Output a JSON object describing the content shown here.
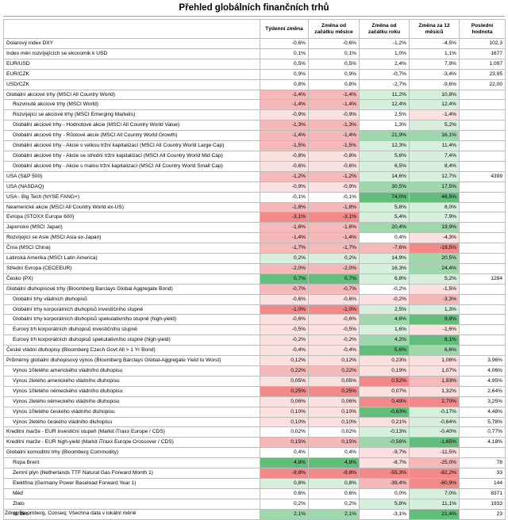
{
  "title": "Přehled globálních finančních trhů",
  "source": "Zdroj: Bloomberg, Conseq; Všechna data v lokální měně",
  "colors": {
    "red_strong": "#f28a8a",
    "red_mid": "#f6b9b9",
    "red_light": "#fbe0e0",
    "green_strong": "#63be7b",
    "green_mid": "#9fd8ad",
    "green_light": "#d7efdd",
    "white": "#ffffff"
  },
  "columns": [
    "",
    "Týdenní změna",
    "Změna od začátku měsíce",
    "Změna od začátku roku",
    "Změna za 12 měsíců",
    "Poslední hodnota"
  ],
  "rows": [
    {
      "label": "Dolarový index DXY",
      "values": [
        "-0,6%",
        "-0,6%",
        "-1,2%",
        "-4,5%",
        "102,3"
      ],
      "colors": [
        "w",
        "w",
        "w",
        "w",
        "w"
      ],
      "sep": false,
      "sub": false
    },
    {
      "label": "Index měn rozvíjejících se ekonomik k USD",
      "values": [
        "0,1%",
        "0,1%",
        "1,0%",
        "1,1%",
        "1677"
      ],
      "colors": [
        "w",
        "w",
        "w",
        "w",
        "w"
      ],
      "sep": false,
      "sub": false
    },
    {
      "label": "EUR/USD",
      "values": [
        "0,5%",
        "0,5%",
        "2,4%",
        "7,9%",
        "1,097"
      ],
      "colors": [
        "w",
        "w",
        "w",
        "w",
        "w"
      ],
      "sep": false,
      "sub": false
    },
    {
      "label": "EUR/CZK",
      "values": [
        "0,9%",
        "0,9%",
        "-0,7%",
        "-3,4%",
        "23,95"
      ],
      "colors": [
        "w",
        "w",
        "w",
        "w",
        "w"
      ],
      "sep": false,
      "sub": false
    },
    {
      "label": "USD/CZK",
      "values": [
        "0,8%",
        "0,8%",
        "-2,7%",
        "-9,6%",
        "22,00"
      ],
      "colors": [
        "w",
        "w",
        "w",
        "w",
        "w"
      ],
      "sep": false,
      "sub": false
    },
    {
      "label": "Globální akciové trhy (MSCI All Country World)",
      "values": [
        "-1,4%",
        "-1,4%",
        "11,2%",
        "10,8%",
        ""
      ],
      "colors": [
        "r2",
        "r2",
        "g3",
        "g3",
        "w"
      ],
      "sep": true,
      "sub": false
    },
    {
      "label": "Rozvinuté akciové trhy (MSCI World)",
      "values": [
        "-1,4%",
        "-1,4%",
        "12,4%",
        "12,4%",
        ""
      ],
      "colors": [
        "r2",
        "r2",
        "g3",
        "g3",
        "w"
      ],
      "sep": false,
      "sub": true
    },
    {
      "label": "Rozvíjející se akciové trhy (MSCI Emerging Markets)",
      "values": [
        "-0,9%",
        "-0,9%",
        "2,5%",
        "-1,4%",
        ""
      ],
      "colors": [
        "r3",
        "r3",
        "w",
        "r3",
        "w"
      ],
      "sep": false,
      "sub": true
    },
    {
      "label": "Globální akciové trhy - Hodnotové akcie (MSCI All Country World Value)",
      "values": [
        "-1,3%",
        "-1,3%",
        "1,3%",
        "5,2%",
        ""
      ],
      "colors": [
        "r2",
        "r2",
        "w",
        "g3",
        "w"
      ],
      "sep": false,
      "sub": true
    },
    {
      "label": "Globální akciové trhy - Růstové akcie (MSCI All Country World Growth)",
      "values": [
        "-1,4%",
        "-1,4%",
        "21,9%",
        "16,1%",
        ""
      ],
      "colors": [
        "r2",
        "r2",
        "g2",
        "g2",
        "w"
      ],
      "sep": false,
      "sub": true
    },
    {
      "label": "Globální akciové trhy - Akcie s velkou tržní kapitalizací (MSCI All Country World Large Cap)",
      "values": [
        "-1,5%",
        "-1,5%",
        "12,3%",
        "11,4%",
        ""
      ],
      "colors": [
        "r2",
        "r2",
        "g3",
        "g3",
        "w"
      ],
      "sep": false,
      "sub": true
    },
    {
      "label": "Globální akciové trhy - Akcie se střední tržní kapitalizací (MSCI All Country World Mid Cap)",
      "values": [
        "-0,8%",
        "-0,8%",
        "5,6%",
        "7,4%",
        ""
      ],
      "colors": [
        "r3",
        "r3",
        "g3",
        "g3",
        "w"
      ],
      "sep": false,
      "sub": true
    },
    {
      "label": "Globální akciové trhy - Akcie s malou tržní kapitalizací (MSCI All Country World Small Cap)",
      "values": [
        "-0,6%",
        "-0,6%",
        "6,5%",
        "8,4%",
        ""
      ],
      "colors": [
        "r3",
        "r3",
        "g3",
        "g3",
        "w"
      ],
      "sep": false,
      "sub": true
    },
    {
      "label": "USA (S&P 500)",
      "values": [
        "-1,2%",
        "-1,2%",
        "14,6%",
        "12,7%",
        "4399"
      ],
      "colors": [
        "r2",
        "r2",
        "g3",
        "g3",
        "w"
      ],
      "sep": false,
      "sub": false
    },
    {
      "label": "USA (NASDAQ)",
      "values": [
        "-0,9%",
        "-0,9%",
        "30,5%",
        "17,5%",
        ""
      ],
      "colors": [
        "r3",
        "r3",
        "g2",
        "g2",
        "w"
      ],
      "sep": false,
      "sub": false
    },
    {
      "label": "USA - Big Tech (NYSE FANG+)",
      "values": [
        "-0,1%",
        "-0,1%",
        "74,0%",
        "46,5%",
        ""
      ],
      "colors": [
        "w",
        "w",
        "g1",
        "g1",
        "w"
      ],
      "sep": false,
      "sub": false
    },
    {
      "label": "Neamerické akcie (MSCI All Country World ex-US)",
      "values": [
        "-1,8%",
        "-1,8%",
        "5,8%",
        "8,0%",
        ""
      ],
      "colors": [
        "r2",
        "r2",
        "g3",
        "g3",
        "w"
      ],
      "sep": false,
      "sub": false
    },
    {
      "label": "Evropa (STOXX Europe 600)",
      "values": [
        "-3,1%",
        "-3,1%",
        "5,4%",
        "7,9%",
        ""
      ],
      "colors": [
        "r1",
        "r1",
        "g3",
        "g3",
        "w"
      ],
      "sep": false,
      "sub": false
    },
    {
      "label": "Japonsko (MSCI Japan)",
      "values": [
        "-1,6%",
        "-1,6%",
        "20,4%",
        "19,9%",
        ""
      ],
      "colors": [
        "r2",
        "r2",
        "g2",
        "g2",
        "w"
      ],
      "sep": false,
      "sub": false
    },
    {
      "label": "Rozvíjející se Asie (MSCI Asia ex-Japan)",
      "values": [
        "-1,4%",
        "-1,4%",
        "0,4%",
        "-4,3%",
        ""
      ],
      "colors": [
        "r2",
        "r2",
        "w",
        "r3",
        "w"
      ],
      "sep": false,
      "sub": false
    },
    {
      "label": "Čína (MSCI China)",
      "values": [
        "-1,7%",
        "-1,7%",
        "-7,6%",
        "-19,5%",
        ""
      ],
      "colors": [
        "r2",
        "r2",
        "r2",
        "r1",
        "w"
      ],
      "sep": false,
      "sub": false
    },
    {
      "label": "Latinská Amerika (MSCI Latin America)",
      "values": [
        "0,2%",
        "0,2%",
        "14,9%",
        "20,5%",
        ""
      ],
      "colors": [
        "g3",
        "g3",
        "g3",
        "g2",
        "w"
      ],
      "sep": false,
      "sub": false
    },
    {
      "label": "Střední Evropa (CECEEUR)",
      "values": [
        "-2,0%",
        "-2,0%",
        "16,3%",
        "24,4%",
        ""
      ],
      "colors": [
        "r2",
        "r2",
        "g3",
        "g2",
        "w"
      ],
      "sep": false,
      "sub": false
    },
    {
      "label": "Česko (PX)",
      "values": [
        "0,7%",
        "0,7%",
        "6,8%",
        "5,2%",
        "1284"
      ],
      "colors": [
        "g1",
        "g1",
        "g3",
        "g3",
        "w"
      ],
      "sep": false,
      "sub": false
    },
    {
      "label": "Globální dluhopisové trhy (Bloomberg Barclays Global Aggregate Bond)",
      "values": [
        "-0,7%",
        "-0,7%",
        "-0,2%",
        "-1,5%",
        ""
      ],
      "colors": [
        "r2",
        "r2",
        "w",
        "r3",
        "w"
      ],
      "sep": true,
      "sub": false
    },
    {
      "label": "Globální trhy vládních dluhopisů",
      "values": [
        "-0,6%",
        "-0,6%",
        "-0,2%",
        "-3,3%",
        ""
      ],
      "colors": [
        "r3",
        "r3",
        "r3",
        "r2",
        "w"
      ],
      "sep": false,
      "sub": true
    },
    {
      "label": "Globální trhy korporátních dluhopisů investičního stupně",
      "values": [
        "-1,0%",
        "-1,0%",
        "2,5%",
        "1,3%",
        ""
      ],
      "colors": [
        "r1",
        "r1",
        "g3",
        "g3",
        "w"
      ],
      "sep": false,
      "sub": true
    },
    {
      "label": "Globální trhy korporátních dluhopisů spekulativního stupně (high-yield)",
      "values": [
        "-0,6%",
        "-0,6%",
        "4,6%",
        "9,8%",
        ""
      ],
      "colors": [
        "r3",
        "r3",
        "g2",
        "g1",
        "w"
      ],
      "sep": false,
      "sub": true
    },
    {
      "label": "Eurový trh korporátních dluhopisů investičního stupně",
      "values": [
        "-0,5%",
        "-0,5%",
        "1,6%",
        "-1,6%",
        ""
      ],
      "colors": [
        "r3",
        "r3",
        "g3",
        "r3",
        "w"
      ],
      "sep": false,
      "sub": true
    },
    {
      "label": "Eurový trh korporátních dluhopisů spekulativního stupně (high-yield)",
      "values": [
        "-0,2%",
        "-0,2%",
        "4,2%",
        "8,1%",
        ""
      ],
      "colors": [
        "r3",
        "r3",
        "g2",
        "g1",
        "w"
      ],
      "sep": false,
      "sub": true
    },
    {
      "label": "České vládní dluhopisy (Bloomberg Czech Govt All > 1 Yr Bond)",
      "values": [
        "-0,4%",
        "-0,4%",
        "5,6%",
        "6,6%",
        ""
      ],
      "colors": [
        "r3",
        "r3",
        "g1",
        "g2",
        "w"
      ],
      "sep": false,
      "sub": false
    },
    {
      "label": "Průměrný globální dluhopisový výnos (Bloomberg Barclays Global-Aggregate Yield to Worst)",
      "values": [
        "0,12%",
        "0,12%",
        "0,23%",
        "1,08%",
        "3,96%"
      ],
      "colors": [
        "r3",
        "r3",
        "r3",
        "r3",
        "w"
      ],
      "sep": true,
      "sub": false
    },
    {
      "label": "Výnos 10letého amerického vládního dluhopisu",
      "values": [
        "0,22%",
        "0,22%",
        "0,19%",
        "1,07%",
        "4,06%"
      ],
      "colors": [
        "r2",
        "r2",
        "r3",
        "r3",
        "w"
      ],
      "sep": false,
      "sub": true
    },
    {
      "label": "Výnos 2letého amerického vládního dluhopisu",
      "values": [
        "0,05%",
        "0,05%",
        "0,52%",
        "1,93%",
        "4,95%"
      ],
      "colors": [
        "r3",
        "r3",
        "r1",
        "r2",
        "w"
      ],
      "sep": false,
      "sub": true
    },
    {
      "label": "Výnos 10letého německého vládního dluhopisu",
      "values": [
        "0,25%",
        "0,25%",
        "0,07%",
        "1,32%",
        "2,64%"
      ],
      "colors": [
        "r1",
        "r1",
        "r3",
        "r3",
        "w"
      ],
      "sep": false,
      "sub": true
    },
    {
      "label": "Výnos 2letého německého vládního dluhopisu",
      "values": [
        "0,06%",
        "0,06%",
        "0,49%",
        "2,70%",
        "3,25%"
      ],
      "colors": [
        "r3",
        "r3",
        "r1",
        "r1",
        "w"
      ],
      "sep": false,
      "sub": true
    },
    {
      "label": "Výnos 10letého českého vládního dluhopisu",
      "values": [
        "0,10%",
        "0,10%",
        "-0,63%",
        "-0,17%",
        "4,48%"
      ],
      "colors": [
        "r3",
        "r3",
        "g1",
        "g3",
        "w"
      ],
      "sep": false,
      "sub": true
    },
    {
      "label": "Výnos 2letého českého vládního dluhopisu",
      "values": [
        "0,10%",
        "0,10%",
        "0,21%",
        "-0,64%",
        "5,78%"
      ],
      "colors": [
        "r3",
        "r3",
        "r3",
        "g3",
        "w"
      ],
      "sep": false,
      "sub": true
    },
    {
      "label": "Kreditní marže - EUR investiční stupeň (Markit iTraxx Europe / CDS)",
      "values": [
        "0,02%",
        "0,02%",
        "-0,13%",
        "-0,40%",
        "0,77%"
      ],
      "colors": [
        "w",
        "w",
        "g3",
        "g3",
        "w"
      ],
      "sep": false,
      "sub": false
    },
    {
      "label": "Kreditní marže - EUR high-yield (Markit iTraxx Europe Crossover / CDS)",
      "values": [
        "0,15%",
        "0,15%",
        "-0,56%",
        "-1,65%",
        "4,18%"
      ],
      "colors": [
        "r2",
        "r2",
        "g2",
        "g1",
        "w"
      ],
      "sep": false,
      "sub": false
    },
    {
      "label": "Globální komoditní trhy (Bloomberg Commodity)",
      "values": [
        "0,4%",
        "0,4%",
        "-9,7%",
        "-11,5%",
        ""
      ],
      "colors": [
        "w",
        "w",
        "r3",
        "r3",
        "w"
      ],
      "sep": true,
      "sub": false
    },
    {
      "label": "Ropa Brent",
      "values": [
        "4,8%",
        "4,8%",
        "-8,7%",
        "-25,0%",
        "78"
      ],
      "colors": [
        "g1",
        "g1",
        "r3",
        "r2",
        "w"
      ],
      "sep": false,
      "sub": true
    },
    {
      "label": "Zemní plyn (Netherlands TTF Natural Gas Forward Month 1)",
      "values": [
        "-9,8%",
        "-9,8%",
        "-55,3%",
        "-82,2%",
        "33"
      ],
      "colors": [
        "r1",
        "r1",
        "r1",
        "r1",
        "w"
      ],
      "sep": false,
      "sub": true
    },
    {
      "label": "Elektřina (Germany Power Baseload Forward Year 1)",
      "values": [
        "0,8%",
        "0,8%",
        "-39,4%",
        "-60,9%",
        "144"
      ],
      "colors": [
        "g3",
        "g3",
        "r2",
        "r1",
        "w"
      ],
      "sep": false,
      "sub": true
    },
    {
      "label": "Měď",
      "values": [
        "0,6%",
        "0,6%",
        "0,0%",
        "7,0%",
        "8371"
      ],
      "colors": [
        "w",
        "w",
        "w",
        "g3",
        "w"
      ],
      "sep": false,
      "sub": true
    },
    {
      "label": "Zlato",
      "values": [
        "0,2%",
        "0,2%",
        "5,8%",
        "11,1%",
        "1933"
      ],
      "colors": [
        "w",
        "w",
        "g3",
        "g3",
        "w"
      ],
      "sep": false,
      "sub": true
    },
    {
      "label": "Stříbro",
      "values": [
        "2,1%",
        "2,1%",
        "-3,1%",
        "21,4%",
        "23"
      ],
      "colors": [
        "g2",
        "g2",
        "w",
        "g1",
        "w"
      ],
      "sep": false,
      "sub": true
    }
  ]
}
